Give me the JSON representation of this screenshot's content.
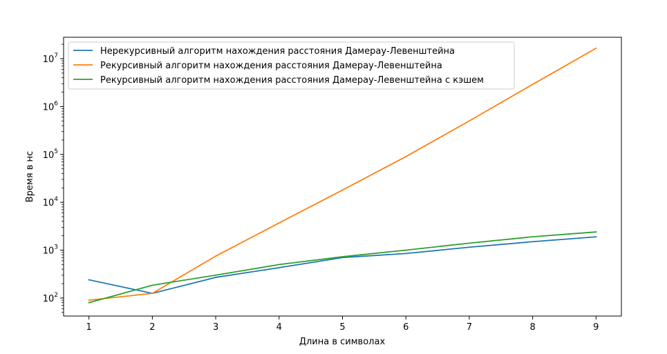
{
  "chart_data": {
    "type": "line",
    "title": "",
    "xlabel": "Длина в символах",
    "ylabel": "Время в нс",
    "x": [
      1,
      2,
      3,
      4,
      5,
      6,
      7,
      8,
      9
    ],
    "x_ticks": [
      "1",
      "2",
      "3",
      "4",
      "5",
      "6",
      "7",
      "8",
      "9"
    ],
    "xlim": [
      0.6,
      9.4
    ],
    "yscale": "log",
    "ylim": [
      42,
      28000000
    ],
    "y_ticks": [
      {
        "base": "10",
        "exp": "2",
        "value": 100
      },
      {
        "base": "10",
        "exp": "3",
        "value": 1000
      },
      {
        "base": "10",
        "exp": "4",
        "value": 10000
      },
      {
        "base": "10",
        "exp": "5",
        "value": 100000
      },
      {
        "base": "10",
        "exp": "6",
        "value": 1000000
      },
      {
        "base": "10",
        "exp": "7",
        "value": 10000000
      }
    ],
    "grid": false,
    "legend_position": "top-left",
    "series": [
      {
        "name": "Нерекурсивный алгоритм нахождения расстояния Дамерау-Левенштейна",
        "color": "#1f77b4",
        "values": [
          240,
          125,
          270,
          430,
          700,
          850,
          1150,
          1500,
          1900
        ]
      },
      {
        "name": "Рекурсивный алгоритм нахождения расстояния Дамерау-Левенштейна",
        "color": "#ff7f0e",
        "values": [
          90,
          125,
          750,
          3700,
          18000,
          90000,
          500000,
          2900000,
          16500000
        ]
      },
      {
        "name": "Рекурсивный алгоритм нахождения расстояния Дамерау-Левенштейна с кэшем",
        "color": "#2ca02c",
        "values": [
          80,
          185,
          300,
          500,
          730,
          1000,
          1400,
          1900,
          2400
        ]
      }
    ]
  }
}
